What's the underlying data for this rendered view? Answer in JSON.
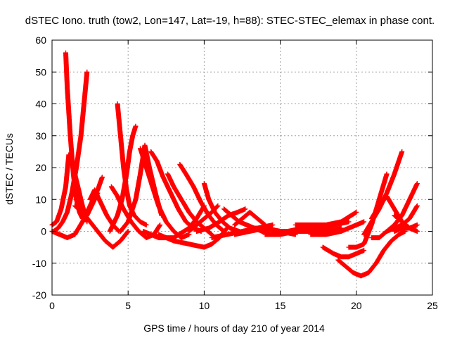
{
  "chart_data": {
    "type": "scatter",
    "title": "dSTEC Iono. truth (tow2, Lon=147, Lat=-19, h=88): STEC-STEC_elemax in phase cont.",
    "xlabel": "GPS time / hours of day 210 of year 2014",
    "ylabel": "dSTEC  / TECUs",
    "xlim": [
      0,
      25
    ],
    "ylim": [
      -20,
      60
    ],
    "xticks": [
      0,
      5,
      10,
      15,
      20,
      25
    ],
    "yticks": [
      -20,
      -10,
      0,
      10,
      20,
      30,
      40,
      50,
      60
    ],
    "grid": true,
    "marker": "+",
    "color": "#ff0000",
    "series": [
      {
        "name": "s01",
        "x": [
          0.9,
          1.0,
          1.2,
          1.4,
          1.6,
          1.8,
          2.0,
          2.3,
          2.6,
          3.0
        ],
        "y": [
          56,
          45,
          30,
          18,
          10,
          6,
          4,
          5,
          8,
          12
        ]
      },
      {
        "name": "s02",
        "x": [
          0.1,
          0.4,
          0.7,
          1.0,
          1.3,
          1.6,
          1.9,
          2.1,
          2.3
        ],
        "y": [
          0,
          1,
          3,
          6,
          12,
          20,
          30,
          40,
          50
        ]
      },
      {
        "name": "s03",
        "x": [
          0.0,
          0.3,
          0.6,
          0.9,
          1.1,
          1.4,
          1.7,
          2.0,
          2.3
        ],
        "y": [
          2,
          3,
          7,
          14,
          24,
          20,
          14,
          8,
          3
        ]
      },
      {
        "name": "s04",
        "x": [
          0.0,
          0.5,
          1.0,
          1.5,
          2.0,
          2.5,
          3.0,
          3.3
        ],
        "y": [
          0,
          -1,
          -2,
          -1,
          3,
          8,
          13,
          17
        ]
      },
      {
        "name": "s05",
        "x": [
          1.5,
          2.0,
          2.5,
          3.0,
          3.5,
          4.0,
          4.5,
          5.0
        ],
        "y": [
          8,
          6,
          3,
          0,
          -3,
          -5,
          -3,
          0
        ]
      },
      {
        "name": "s06",
        "x": [
          2.5,
          2.8,
          3.2,
          3.6,
          4.0,
          4.4
        ],
        "y": [
          10,
          13,
          9,
          5,
          2,
          0
        ]
      },
      {
        "name": "s07",
        "x": [
          4.3,
          4.5,
          4.7,
          4.9,
          5.1,
          5.4,
          5.8,
          6.2
        ],
        "y": [
          40,
          30,
          20,
          13,
          8,
          5,
          3,
          2
        ]
      },
      {
        "name": "s08",
        "x": [
          3.8,
          4.0,
          4.3,
          4.6,
          4.9,
          5.1,
          5.3,
          5.5
        ],
        "y": [
          0,
          2,
          5,
          10,
          18,
          25,
          30,
          33
        ]
      },
      {
        "name": "s09",
        "x": [
          3.9,
          4.3,
          4.7,
          5.2,
          5.7,
          6.2,
          6.7,
          7.1
        ],
        "y": [
          14,
          11,
          7,
          3,
          0,
          -2,
          -1,
          2
        ]
      },
      {
        "name": "s10",
        "x": [
          4.5,
          5.0,
          5.5,
          5.8,
          6.1,
          6.4,
          6.8,
          7.2
        ],
        "y": [
          0,
          3,
          10,
          18,
          27,
          20,
          12,
          5
        ]
      },
      {
        "name": "s11",
        "x": [
          5.8,
          6.2,
          6.6,
          7.0,
          7.5,
          8.0,
          8.5,
          9.0
        ],
        "y": [
          26,
          20,
          14,
          8,
          3,
          0,
          -2,
          -1
        ]
      },
      {
        "name": "s12",
        "x": [
          6.5,
          6.9,
          7.3,
          7.8,
          8.3,
          8.8,
          9.3,
          9.8
        ],
        "y": [
          25,
          22,
          17,
          12,
          7,
          3,
          1,
          0
        ]
      },
      {
        "name": "s13",
        "x": [
          6.0,
          7.0,
          8.0,
          9.0,
          9.5,
          10.0
        ],
        "y": [
          0,
          -2,
          -2,
          1,
          4,
          8
        ]
      },
      {
        "name": "s14",
        "x": [
          7.6,
          8.0,
          8.5,
          9.0,
          9.5,
          10.0,
          10.5
        ],
        "y": [
          18,
          14,
          10,
          6,
          3,
          1,
          -1
        ]
      },
      {
        "name": "s15",
        "x": [
          8.4,
          8.8,
          9.3,
          9.8,
          10.3,
          10.8,
          11.3
        ],
        "y": [
          21,
          18,
          14,
          9,
          5,
          2,
          0
        ]
      },
      {
        "name": "s16",
        "x": [
          7.0,
          8.0,
          9.0,
          10.0,
          10.5,
          11.0,
          11.5
        ],
        "y": [
          -1,
          -3,
          -4,
          -5,
          -4,
          -2,
          1
        ]
      },
      {
        "name": "s17",
        "x": [
          10.0,
          10.3,
          10.7,
          11.2,
          11.7,
          12.3
        ],
        "y": [
          15,
          10,
          6,
          3,
          1,
          0
        ]
      },
      {
        "name": "s18",
        "x": [
          9.0,
          9.5,
          10.0,
          10.5,
          10.9
        ],
        "y": [
          0,
          2,
          4,
          6,
          8
        ]
      },
      {
        "name": "s19",
        "x": [
          9.5,
          10.3,
          11.0,
          11.6,
          12.2,
          12.7
        ],
        "y": [
          0,
          1,
          3,
          5,
          6,
          7
        ]
      },
      {
        "name": "s20",
        "x": [
          11.3,
          11.8,
          12.3,
          12.8,
          13.3,
          13.8,
          14.3
        ],
        "y": [
          7,
          5,
          3,
          2,
          1,
          0,
          0
        ]
      },
      {
        "name": "s21",
        "x": [
          10.5,
          11.5,
          12.5,
          13.5,
          14.5
        ],
        "y": [
          -2,
          -1,
          0,
          1,
          2
        ]
      },
      {
        "name": "s22",
        "x": [
          12.0,
          12.5,
          13.0,
          13.5,
          14.0
        ],
        "y": [
          2,
          4,
          6,
          4,
          2
        ]
      },
      {
        "name": "s23",
        "x": [
          12.0,
          13.0,
          14.0,
          15.0,
          16.0
        ],
        "y": [
          -1,
          0,
          1,
          0,
          -1
        ]
      },
      {
        "name": "s24",
        "x": [
          13.0,
          14.0,
          15.0,
          16.0,
          17.0,
          18.0
        ],
        "y": [
          1,
          1,
          0,
          0,
          1,
          1
        ]
      },
      {
        "name": "s25",
        "x": [
          14.0,
          15.0,
          16.0,
          17.0,
          18.0,
          19.0
        ],
        "y": [
          -1,
          -1,
          0,
          0,
          0,
          1
        ]
      },
      {
        "name": "s26",
        "x": [
          16.0,
          17.0,
          18.0,
          19.0,
          20.0
        ],
        "y": [
          2,
          2,
          2,
          3,
          6
        ]
      },
      {
        "name": "s27",
        "x": [
          15.5,
          16.5,
          17.5,
          18.5,
          19.5
        ],
        "y": [
          0,
          1,
          1,
          2,
          3
        ]
      },
      {
        "name": "s28",
        "x": [
          17.0,
          18.0,
          19.0,
          19.5,
          20.0,
          20.5
        ],
        "y": [
          -1,
          -1,
          0,
          1,
          2,
          3
        ]
      },
      {
        "name": "s29",
        "x": [
          17.8,
          18.5,
          19.0,
          19.5,
          20.0,
          20.5
        ],
        "y": [
          -5,
          -7,
          -8,
          -8,
          -7,
          -6
        ]
      },
      {
        "name": "s30",
        "x": [
          18.8,
          19.3,
          19.8,
          20.3,
          20.8,
          21.3,
          21.8,
          22.3,
          22.8,
          23.2
        ],
        "y": [
          -9,
          -11,
          -13,
          -14,
          -13,
          -10,
          -6,
          -3,
          -1,
          0
        ]
      },
      {
        "name": "s31",
        "x": [
          19.5,
          20.0,
          20.5,
          21.0,
          21.5,
          22.0
        ],
        "y": [
          -5,
          -5,
          -4,
          2,
          10,
          18
        ]
      },
      {
        "name": "s32",
        "x": [
          20.5,
          21.0,
          21.5,
          22.0,
          22.5,
          23.0
        ],
        "y": [
          -1,
          3,
          7,
          12,
          18,
          25
        ]
      },
      {
        "name": "s33",
        "x": [
          21.0,
          21.5,
          22.0,
          22.5,
          23.0,
          23.5
        ],
        "y": [
          4,
          8,
          11,
          7,
          3,
          1
        ]
      },
      {
        "name": "s34",
        "x": [
          21.0,
          21.5,
          22.0,
          22.5,
          23.0,
          23.5,
          24.0
        ],
        "y": [
          -2,
          -2,
          0,
          2,
          5,
          10,
          15
        ]
      },
      {
        "name": "s35",
        "x": [
          22.0,
          22.5,
          23.0,
          23.5,
          24.0
        ],
        "y": [
          0,
          1,
          2,
          4,
          8
        ]
      },
      {
        "name": "s36",
        "x": [
          22.5,
          23.0,
          23.5,
          24.0
        ],
        "y": [
          5,
          3,
          1,
          0
        ]
      },
      {
        "name": "s37",
        "x": [
          22.5,
          23.0,
          23.5,
          24.0
        ],
        "y": [
          0,
          1,
          1,
          2
        ]
      }
    ]
  }
}
